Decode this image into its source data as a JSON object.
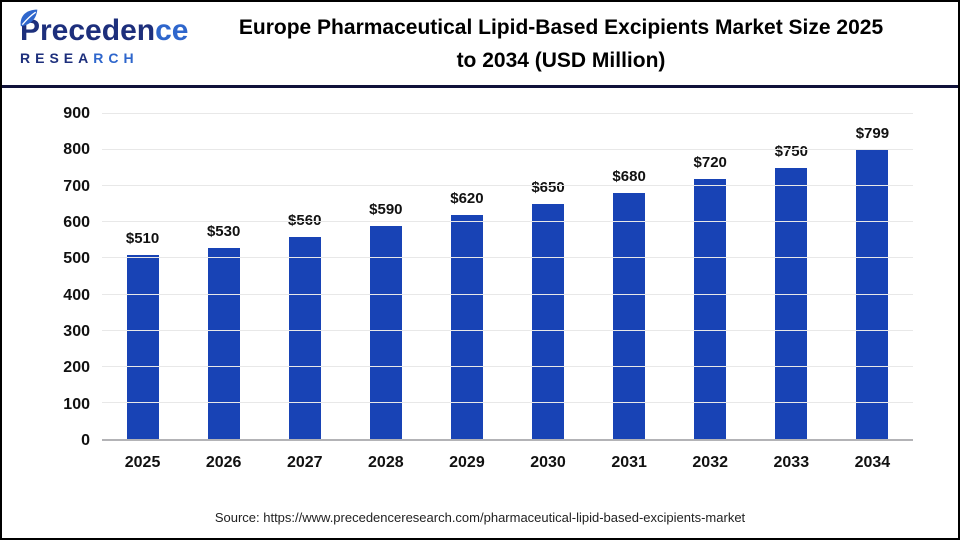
{
  "header": {
    "logo": {
      "line1_dark": "Preceden",
      "line1_light": "ce",
      "line2_dark": "RESEA",
      "line2_light": "RCH"
    },
    "title_line1": "Europe Pharmaceutical Lipid-Based Excipients Market Size 2025",
    "title_line2": "to 2034 (USD Million)"
  },
  "chart_data": {
    "type": "bar",
    "title": "Europe Pharmaceutical Lipid-Based Excipients Market Size 2025 to 2034 (USD Million)",
    "categories": [
      "2025",
      "2026",
      "2027",
      "2028",
      "2029",
      "2030",
      "2031",
      "2032",
      "2033",
      "2034"
    ],
    "values": [
      510,
      530,
      560,
      590,
      620,
      650,
      680,
      720,
      750,
      799
    ],
    "value_labels": [
      "$510",
      "$530",
      "$560",
      "$590",
      "$620",
      "$650",
      "$680",
      "$720",
      "$750",
      "$799"
    ],
    "xlabel": "",
    "ylabel": "",
    "ylim": [
      0,
      900
    ],
    "yticks": [
      0,
      100,
      200,
      300,
      400,
      500,
      600,
      700,
      800,
      900
    ],
    "grid": true,
    "legend": false,
    "bar_color": "#1843b5"
  },
  "footer": {
    "source": "Source: https://www.precedenceresearch.com/pharmaceutical-lipid-based-excipients-market"
  }
}
